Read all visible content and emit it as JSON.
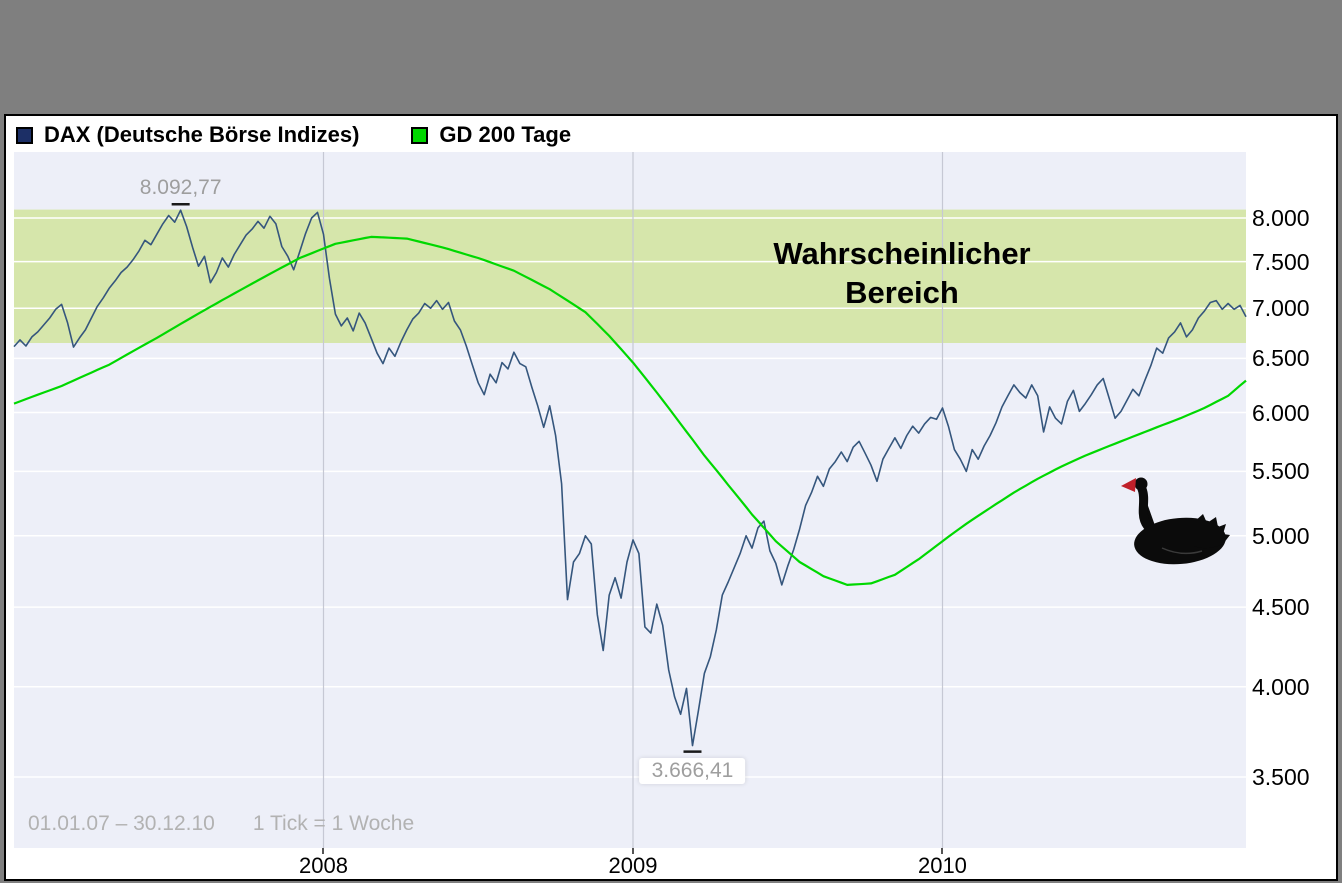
{
  "colors": {
    "page_bg": "#7f7f7f",
    "panel_bg": "#ffffff",
    "plot_bg": "#edeff8",
    "band_fill": "#d6e6ab",
    "grid_h": "#ffffff",
    "grid_v": "#c6c8d4",
    "dax_line": "#35567d",
    "dax_swatch": "#1c2f66",
    "gd200_line": "#00d800",
    "muted": "#9e9e9e",
    "footnote": "#b2b2b2",
    "swan_body": "#0b0b0b",
    "swan_beak": "#c0202a"
  },
  "legend": [
    {
      "label": "DAX (Deutsche Börse Indizes)",
      "color": "#1c2f66"
    },
    {
      "label": "GD 200 Tage",
      "color": "#00d800"
    }
  ],
  "annotations": {
    "high_label": "8.092,77",
    "low_label": "3.666,41",
    "footer_range": "01.01.07 – 30.12.10",
    "footer_tick": "1 Tick = 1 Woche"
  },
  "axes": {
    "y": [
      {
        "label": "8.000",
        "value": 8000
      },
      {
        "label": "7.500",
        "value": 7500
      },
      {
        "label": "7.000",
        "value": 7000
      },
      {
        "label": "6.500",
        "value": 6500
      },
      {
        "label": "6.000",
        "value": 6000
      },
      {
        "label": "5.500",
        "value": 5500
      },
      {
        "label": "5.000",
        "value": 5000
      },
      {
        "label": "4.500",
        "value": 4500
      },
      {
        "label": "4.000",
        "value": 4000
      },
      {
        "label": "3.500",
        "value": 3500
      }
    ],
    "x": [
      {
        "label": "2008",
        "week": 52
      },
      {
        "label": "2009",
        "week": 104
      },
      {
        "label": "2010",
        "week": 156
      }
    ]
  },
  "icons": [
    {
      "name": "dax-swatch-icon"
    },
    {
      "name": "gd200-swatch-icon"
    },
    {
      "name": "black-swan-icon"
    }
  ],
  "chart_data": {
    "type": "line",
    "title": "DAX (Deutsche Börse Indizes) with GD 200 Tage",
    "x_unit": "week",
    "x_range_label": "01.01.07 – 30.12.10",
    "tick_label": "1 Tick = 1 Woche",
    "y_scale": "log",
    "ylim": [
      3150,
      8800
    ],
    "grid": true,
    "legend_position": "top-left",
    "band": {
      "label": "Wahrscheinlicher Bereich",
      "label_lines": [
        "Wahrscheinlicher",
        "Bereich"
      ],
      "from": 6650,
      "to": 8100,
      "color": "#d6e6ab"
    },
    "high": {
      "week": 28,
      "value": 8092.77,
      "label": "8.092,77"
    },
    "low": {
      "week": 114,
      "value": 3666.41,
      "label": "3.666,41"
    },
    "series": [
      {
        "name": "DAX (Deutsche Börse Indizes)",
        "color": "#35567d",
        "values": [
          6614,
          6680,
          6620,
          6710,
          6760,
          6830,
          6900,
          6990,
          7040,
          6850,
          6610,
          6700,
          6780,
          6900,
          7020,
          7110,
          7210,
          7290,
          7380,
          7440,
          7520,
          7620,
          7740,
          7690,
          7810,
          7930,
          8030,
          7950,
          8092.77,
          7900,
          7660,
          7450,
          7560,
          7270,
          7380,
          7540,
          7440,
          7580,
          7690,
          7800,
          7870,
          7960,
          7880,
          8020,
          7930,
          7670,
          7560,
          7410,
          7610,
          7820,
          8000,
          8067,
          7810,
          7320,
          6940,
          6820,
          6900,
          6770,
          6950,
          6850,
          6700,
          6550,
          6450,
          6600,
          6520,
          6660,
          6780,
          6890,
          6950,
          7050,
          7000,
          7080,
          6990,
          7060,
          6870,
          6780,
          6620,
          6440,
          6270,
          6160,
          6350,
          6270,
          6460,
          6400,
          6560,
          6450,
          6420,
          6230,
          6060,
          5870,
          6060,
          5800,
          5400,
          4550,
          4810,
          4870,
          5000,
          4940,
          4450,
          4220,
          4580,
          4700,
          4560,
          4810,
          4970,
          4870,
          4370,
          4330,
          4520,
          4380,
          4100,
          3940,
          3840,
          3990,
          3666.41,
          3860,
          4080,
          4180,
          4350,
          4580,
          4670,
          4770,
          4870,
          5000,
          4910,
          5060,
          5110,
          4890,
          4800,
          4650,
          4780,
          4900,
          5050,
          5230,
          5330,
          5460,
          5380,
          5520,
          5580,
          5660,
          5580,
          5700,
          5750,
          5650,
          5550,
          5420,
          5600,
          5690,
          5780,
          5690,
          5800,
          5880,
          5820,
          5900,
          5957,
          5940,
          6040,
          5880,
          5680,
          5600,
          5500,
          5680,
          5600,
          5710,
          5800,
          5910,
          6050,
          6150,
          6250,
          6180,
          6130,
          6250,
          6150,
          5830,
          6050,
          5950,
          5900,
          6100,
          6200,
          6010,
          6080,
          6160,
          6250,
          6310,
          6130,
          5950,
          6010,
          6110,
          6210,
          6150,
          6290,
          6430,
          6600,
          6550,
          6700,
          6760,
          6850,
          6710,
          6780,
          6900,
          6970,
          7060,
          7080,
          6990,
          7050,
          6990,
          7030,
          6914
        ]
      },
      {
        "name": "GD 200 Tage",
        "color": "#00d800",
        "anchors": [
          [
            0,
            6080
          ],
          [
            8,
            6240
          ],
          [
            16,
            6440
          ],
          [
            24,
            6700
          ],
          [
            32,
            6980
          ],
          [
            40,
            7260
          ],
          [
            48,
            7540
          ],
          [
            54,
            7700
          ],
          [
            60,
            7780
          ],
          [
            66,
            7760
          ],
          [
            72,
            7660
          ],
          [
            78,
            7540
          ],
          [
            84,
            7400
          ],
          [
            90,
            7200
          ],
          [
            96,
            6960
          ],
          [
            100,
            6720
          ],
          [
            104,
            6460
          ],
          [
            108,
            6180
          ],
          [
            112,
            5900
          ],
          [
            116,
            5630
          ],
          [
            120,
            5390
          ],
          [
            124,
            5160
          ],
          [
            128,
            4960
          ],
          [
            132,
            4810
          ],
          [
            136,
            4710
          ],
          [
            140,
            4650
          ],
          [
            144,
            4660
          ],
          [
            148,
            4720
          ],
          [
            152,
            4830
          ],
          [
            156,
            4960
          ],
          [
            160,
            5090
          ],
          [
            164,
            5210
          ],
          [
            168,
            5330
          ],
          [
            172,
            5440
          ],
          [
            176,
            5540
          ],
          [
            180,
            5630
          ],
          [
            184,
            5710
          ],
          [
            188,
            5790
          ],
          [
            192,
            5870
          ],
          [
            196,
            5950
          ],
          [
            200,
            6040
          ],
          [
            204,
            6150
          ],
          [
            207,
            6290
          ]
        ]
      }
    ]
  }
}
